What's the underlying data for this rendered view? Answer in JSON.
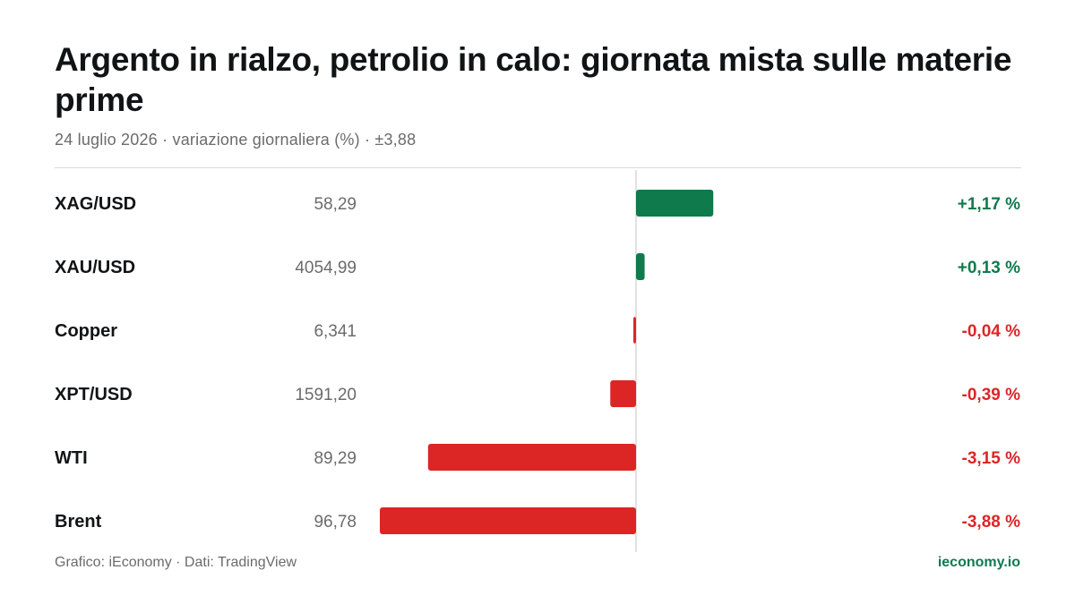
{
  "header": {
    "title": "Argento in rialzo, petrolio in calo: giornata mista sulle materie prime",
    "subtitle": "24 luglio 2026 · variazione giornaliera (%) · ±3,88"
  },
  "footer": {
    "source": "Grafico: iEconomy · Dati: TradingView",
    "brand": "ieconomy.io"
  },
  "colors": {
    "positive": "#0f7a4c",
    "negative": "#dc2626",
    "label": "#111416",
    "price": "#6b6b6b",
    "axis": "#d9d9d9"
  },
  "chart_data": {
    "type": "bar",
    "orientation": "horizontal",
    "unit": "%",
    "xlim": [
      -3.88,
      3.88
    ],
    "categories": [
      "XAG/USD",
      "XAU/USD",
      "Copper",
      "XPT/USD",
      "WTI",
      "Brent"
    ],
    "prices": [
      "58,29",
      "4054,99",
      "6,341",
      "1591,20",
      "89,29",
      "96,78"
    ],
    "values": [
      1.17,
      0.13,
      -0.04,
      -0.39,
      -3.15,
      -3.88
    ],
    "value_labels": [
      "+1,17 %",
      "+0,13 %",
      "-0,04 %",
      "-0,39 %",
      "-3,15 %",
      "-3,88 %"
    ]
  }
}
